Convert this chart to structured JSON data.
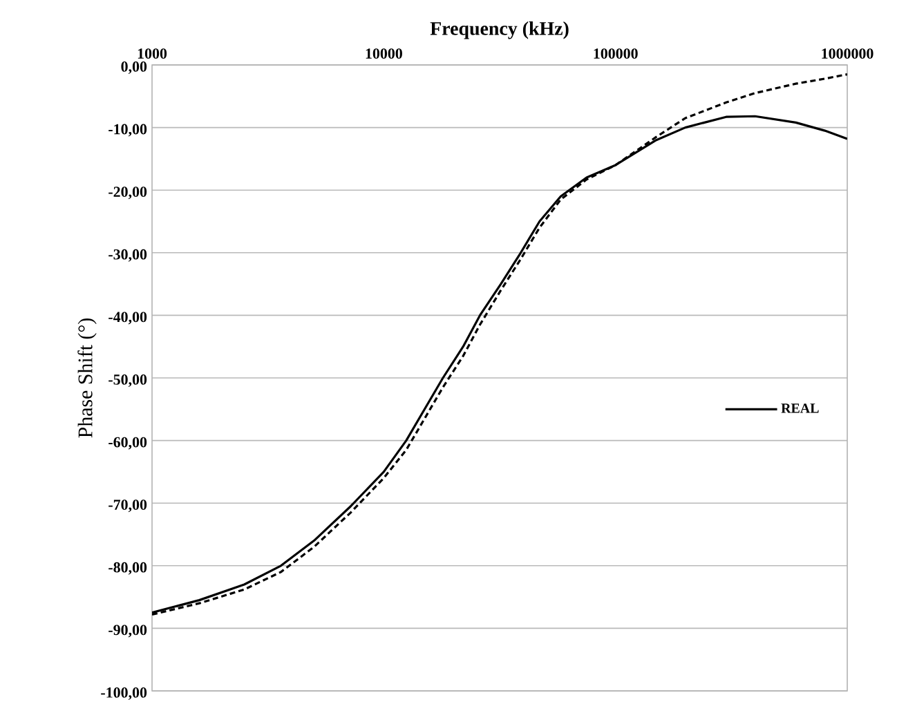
{
  "chart_data": {
    "type": "line",
    "xlabel": "Frequency (kHz)",
    "ylabel": "Phase Shift (°)",
    "log": "x",
    "grid": "y",
    "legend": "right",
    "xlim": [
      1000,
      1000000
    ],
    "xticks": [
      1000,
      10000,
      100000,
      1000000
    ],
    "ylim": [
      -100,
      0
    ],
    "yticks": [
      {
        "value": 0,
        "label": "0,00"
      },
      {
        "value": -10,
        "label": "-10,00"
      },
      {
        "value": -20,
        "label": "-20,00"
      },
      {
        "value": -30,
        "label": "-30,00"
      },
      {
        "value": -40,
        "label": "-40,00"
      },
      {
        "value": -50,
        "label": "-50,00"
      },
      {
        "value": -60,
        "label": "-60,00"
      },
      {
        "value": -70,
        "label": "-70,00"
      },
      {
        "value": -80,
        "label": "-80,00"
      },
      {
        "value": -90,
        "label": "-90,00"
      },
      {
        "value": -100,
        "label": "-100,00"
      }
    ],
    "series": [
      {
        "color": "#000000",
        "line_style": "dashed",
        "x": [
          1000,
          1600,
          2500,
          3600,
          5000,
          7200,
          10000,
          12500,
          15000,
          18000,
          22000,
          26000,
          32000,
          39000,
          47000,
          58000,
          75000,
          100000,
          150000,
          200000,
          300000,
          400000,
          600000,
          800000,
          1000000
        ],
        "values": [
          -87.8,
          -86,
          -83.8,
          -81,
          -77,
          -71.5,
          -66,
          -61.5,
          -56.5,
          -51.5,
          -46.5,
          -41.5,
          -36,
          -31,
          -26,
          -21.5,
          -18.3,
          -16,
          -11.5,
          -8.5,
          -6,
          -4.5,
          -3,
          -2.2,
          -1.5
        ]
      },
      {
        "name": "REAL",
        "color": "#000000",
        "line_style": "solid",
        "x": [
          1000,
          1600,
          2500,
          3600,
          5000,
          7200,
          10000,
          12500,
          15000,
          18000,
          22000,
          26000,
          32000,
          39000,
          47000,
          58000,
          75000,
          100000,
          150000,
          200000,
          300000,
          400000,
          600000,
          800000,
          1000000
        ],
        "values": [
          -87.5,
          -85.5,
          -83,
          -80,
          -76,
          -70.5,
          -65,
          -60,
          -55,
          -50,
          -45,
          -40,
          -35,
          -30,
          -25,
          -21,
          -18,
          -16,
          -12,
          -10,
          -8.3,
          -8.2,
          -9.2,
          -10.5,
          -11.8
        ]
      }
    ]
  }
}
